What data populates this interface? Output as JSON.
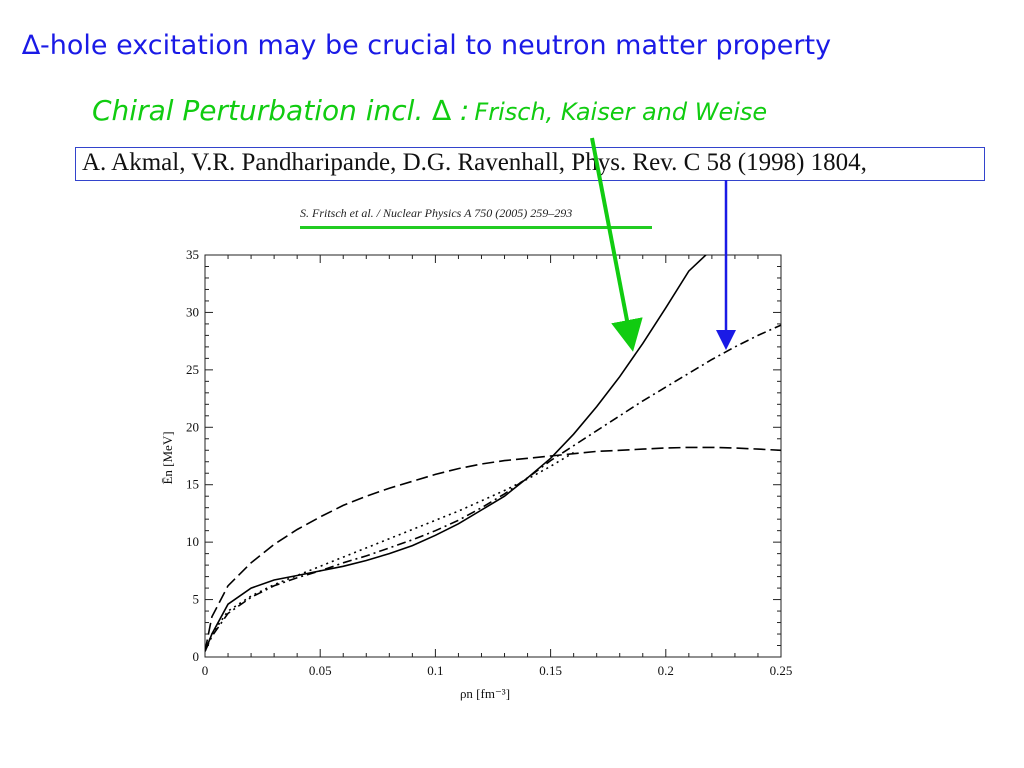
{
  "slide": {
    "title": "∆-hole excitation may be crucial to neutron matter property",
    "subtitle_main": "Chiral Perturbation incl. ∆ :",
    "subtitle_names": "Frisch, Kaiser and Weise",
    "reference": "A. Akmal, V.R. Pandharipande, D.G. Ravenhall, Phys. Rev. C 58 (1998) 1804,",
    "figure_source": "S. Fritsch et al. / Nuclear Physics A 750 (2005) 259–293"
  },
  "colors": {
    "title": "#1a1ae6",
    "subtitle": "#11cc11",
    "reference_box": "#3344cc",
    "arrow_green": "#11cc11",
    "arrow_blue": "#1a1ae6",
    "curves": "#000000"
  },
  "chart_data": {
    "type": "line",
    "xlabel": "ρn [fm⁻³]",
    "ylabel": "Ēn [MeV]",
    "xlim": [
      0,
      0.25
    ],
    "ylim": [
      0,
      35
    ],
    "xticks": [
      "0",
      "0.05",
      "0.1",
      "0.15",
      "0.2",
      "0.25"
    ],
    "yticks": [
      "0",
      "5",
      "10",
      "15",
      "20",
      "25",
      "30",
      "35"
    ],
    "grid": false,
    "series": [
      {
        "style": "solid",
        "x": [
          0,
          0.003,
          0.01,
          0.02,
          0.03,
          0.04,
          0.05,
          0.06,
          0.07,
          0.08,
          0.09,
          0.1,
          0.11,
          0.12,
          0.13,
          0.14,
          0.15,
          0.16,
          0.17,
          0.18,
          0.19,
          0.2,
          0.21,
          0.22
        ],
        "y": [
          0.5,
          2.0,
          4.6,
          6.0,
          6.7,
          7.1,
          7.5,
          7.9,
          8.4,
          9.0,
          9.7,
          10.6,
          11.6,
          12.8,
          14.0,
          15.6,
          17.3,
          19.4,
          21.8,
          24.4,
          27.3,
          30.4,
          33.6,
          35.5
        ]
      },
      {
        "style": "dashed",
        "x": [
          0,
          0.003,
          0.01,
          0.02,
          0.03,
          0.04,
          0.05,
          0.06,
          0.07,
          0.08,
          0.09,
          0.1,
          0.11,
          0.12,
          0.13,
          0.14,
          0.15,
          0.16,
          0.17,
          0.18,
          0.19,
          0.2,
          0.21,
          0.22,
          0.23,
          0.24,
          0.25
        ],
        "y": [
          0.5,
          3.5,
          6.2,
          8.2,
          9.8,
          11.1,
          12.2,
          13.2,
          14.0,
          14.7,
          15.3,
          15.9,
          16.4,
          16.8,
          17.1,
          17.3,
          17.5,
          17.7,
          17.9,
          18.0,
          18.1,
          18.2,
          18.25,
          18.25,
          18.2,
          18.1,
          18.0
        ]
      },
      {
        "style": "dotted",
        "x": [
          0,
          0.003,
          0.01,
          0.02,
          0.03,
          0.04,
          0.05,
          0.06,
          0.07,
          0.08,
          0.09,
          0.1,
          0.11,
          0.12,
          0.13,
          0.14,
          0.15,
          0.16
        ],
        "y": [
          0.5,
          2.0,
          4.0,
          5.3,
          6.3,
          7.1,
          7.9,
          8.7,
          9.5,
          10.3,
          11.1,
          11.9,
          12.7,
          13.6,
          14.5,
          15.5,
          16.6,
          17.8
        ]
      },
      {
        "style": "dash-dot",
        "x": [
          0,
          0.003,
          0.01,
          0.02,
          0.03,
          0.04,
          0.05,
          0.06,
          0.07,
          0.08,
          0.09,
          0.1,
          0.11,
          0.12,
          0.13,
          0.14,
          0.15,
          0.16,
          0.17,
          0.18,
          0.19,
          0.2,
          0.21,
          0.22,
          0.23,
          0.24,
          0.25
        ],
        "y": [
          0.5,
          1.8,
          3.8,
          5.2,
          6.2,
          6.9,
          7.5,
          8.2,
          8.8,
          9.5,
          10.2,
          11.0,
          11.9,
          13.0,
          14.2,
          15.6,
          17.1,
          18.4,
          19.7,
          21.0,
          22.3,
          23.5,
          24.7,
          25.9,
          27.0,
          28.0,
          28.9
        ]
      }
    ]
  }
}
